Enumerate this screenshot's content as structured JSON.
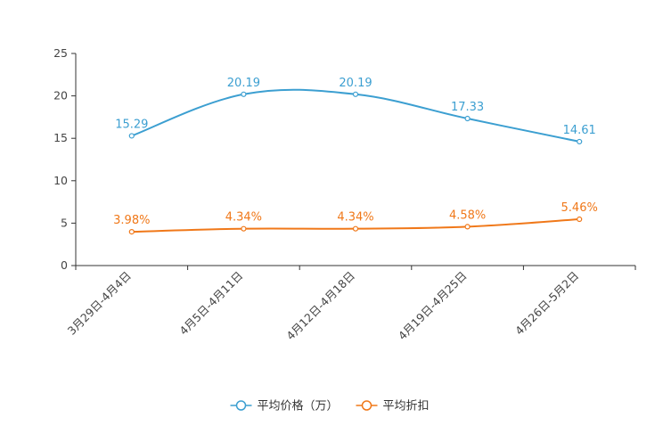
{
  "chart_data": {
    "type": "line",
    "title": "",
    "xlabel": "",
    "ylabel": "",
    "categories": [
      "3月29日-4月4日",
      "4月5日-4月11日",
      "4月12日-4月18日",
      "4月19日-4月25日",
      "4月26日-5月2日"
    ],
    "ylim": [
      0,
      25
    ],
    "yticks": [
      0,
      5,
      10,
      15,
      20,
      25
    ],
    "grid": false,
    "legend_position": "bottom-center",
    "series": [
      {
        "name": "平均价格（万）",
        "color": "#3c9fd1",
        "values": [
          15.29,
          20.19,
          20.19,
          17.33,
          14.61
        ],
        "labels": [
          "15.29",
          "20.19",
          "20.19",
          "17.33",
          "14.61"
        ]
      },
      {
        "name": "平均折扣",
        "color": "#f07819",
        "values": [
          3.98,
          4.34,
          4.34,
          4.58,
          5.46
        ],
        "labels": [
          "3.98%",
          "4.34%",
          "4.34%",
          "4.58%",
          "5.46%"
        ]
      }
    ]
  }
}
